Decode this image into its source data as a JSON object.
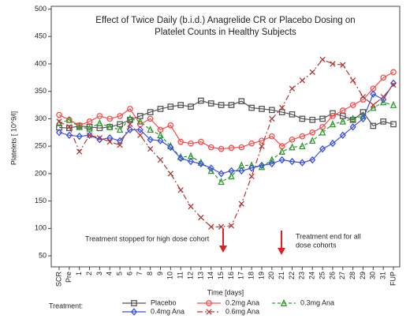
{
  "chart_data": {
    "type": "line",
    "title": [
      "Effect of Twice Daily (b.i.d.) Anagrelide CR or Placebo Dosing on",
      "Platelet Counts in Healthy Subjects"
    ],
    "x_label": "Time [days]",
    "y_label": "Platelets [ 10^9/l]",
    "legend_title": "Treatment:",
    "categories": [
      "SCR",
      "Pre",
      "1",
      "2",
      "3",
      "4",
      "5",
      "6",
      "7",
      "8",
      "9",
      "10",
      "11",
      "12",
      "13",
      "14",
      "15",
      "16",
      "17",
      "18",
      "19",
      "20",
      "21",
      "22",
      "23",
      "24",
      "25",
      "26",
      "27",
      "28",
      "29",
      "30",
      "31",
      "FUP"
    ],
    "ylim": [
      30,
      505
    ],
    "yticks": [
      50,
      100,
      150,
      200,
      250,
      300,
      350,
      400,
      450,
      500
    ],
    "annotations": [
      {
        "text": [
          "Treatment stopped for high dose cohort"
        ]
      },
      {
        "text": [
          "Treatment end for all",
          "dose cohorts"
        ]
      }
    ],
    "series": [
      {
        "name": "Placebo",
        "color": "#555555",
        "marker": "square",
        "dash": "solid",
        "values": [
          284,
          283,
          287,
          285,
          283,
          285,
          290,
          298,
          305,
          312,
          318,
          322,
          325,
          322,
          333,
          328,
          325,
          325,
          332,
          320,
          318,
          316,
          312,
          308,
          300,
          298,
          300,
          310,
          305,
          298,
          312,
          287,
          295,
          290
        ]
      },
      {
        "name": "0.2mg Ana",
        "color": "#ff4a4a",
        "marker": "circle",
        "dash": "solid",
        "values": [
          307,
          298,
          288,
          295,
          305,
          300,
          305,
          318,
          290,
          300,
          280,
          288,
          258,
          255,
          258,
          248,
          245,
          247,
          248,
          255,
          260,
          268,
          250,
          262,
          268,
          275,
          285,
          305,
          315,
          325,
          335,
          355,
          375,
          385
        ]
      },
      {
        "name": "0.3mg Ana",
        "color": "#2e9a2e",
        "marker": "triangle",
        "dash": "dashed",
        "values": [
          292,
          298,
          285,
          282,
          292,
          285,
          280,
          300,
          295,
          280,
          270,
          250,
          230,
          232,
          220,
          205,
          185,
          195,
          215,
          215,
          212,
          225,
          240,
          248,
          250,
          260,
          275,
          290,
          295,
          300,
          305,
          320,
          330,
          325
        ]
      },
      {
        "name": "0.4mg Ana",
        "color": "#3a4fe0",
        "marker": "diamond",
        "dash": "solid",
        "values": [
          275,
          270,
          268,
          270,
          262,
          265,
          260,
          280,
          280,
          262,
          260,
          248,
          228,
          222,
          218,
          210,
          200,
          205,
          205,
          210,
          215,
          218,
          225,
          222,
          220,
          225,
          245,
          255,
          270,
          285,
          300,
          345,
          335,
          365
        ]
      },
      {
        "name": "0.6mg Ana",
        "color": "#b03a3a",
        "marker": "x",
        "dash": "dashdot",
        "values": [
          295,
          285,
          240,
          270,
          265,
          258,
          252,
          290,
          270,
          245,
          225,
          200,
          170,
          140,
          120,
          103,
          103,
          105,
          145,
          195,
          250,
          300,
          320,
          355,
          370,
          385,
          408,
          400,
          398,
          370,
          340,
          325,
          340,
          362
        ]
      }
    ]
  }
}
